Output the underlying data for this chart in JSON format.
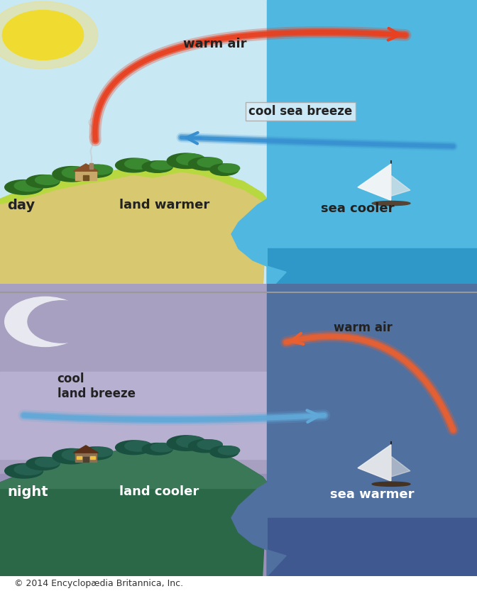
{
  "fig_width": 6.72,
  "fig_height": 8.33,
  "dpi": 100,
  "top_sky_color": "#c8e8f4",
  "top_land_top_color": "#b8d840",
  "top_land_mid_color": "#c8dc50",
  "top_ground_color": "#d8c870",
  "top_sea_color": "#50b8e0",
  "top_sea_deep_color": "#3098c8",
  "bottom_sky_top_color": "#9890b8",
  "bottom_sky_color": "#b0a8cc",
  "bottom_land_color": "#2a7858",
  "bottom_sea_color": "#5878a8",
  "caption": "© 2014 Encyclopædia Britannica, Inc.",
  "day_label": "day",
  "night_label": "night",
  "land_warmer_label": "land warmer",
  "sea_cooler_label": "sea cooler",
  "land_cooler_label": "land cooler",
  "sea_warmer_label": "sea warmer",
  "warm_air_label_day": "warm air",
  "cool_sea_breeze_label": "cool sea breeze",
  "warm_air_label_night": "warm air",
  "cool_land_breeze_label": "cool\nland breeze"
}
